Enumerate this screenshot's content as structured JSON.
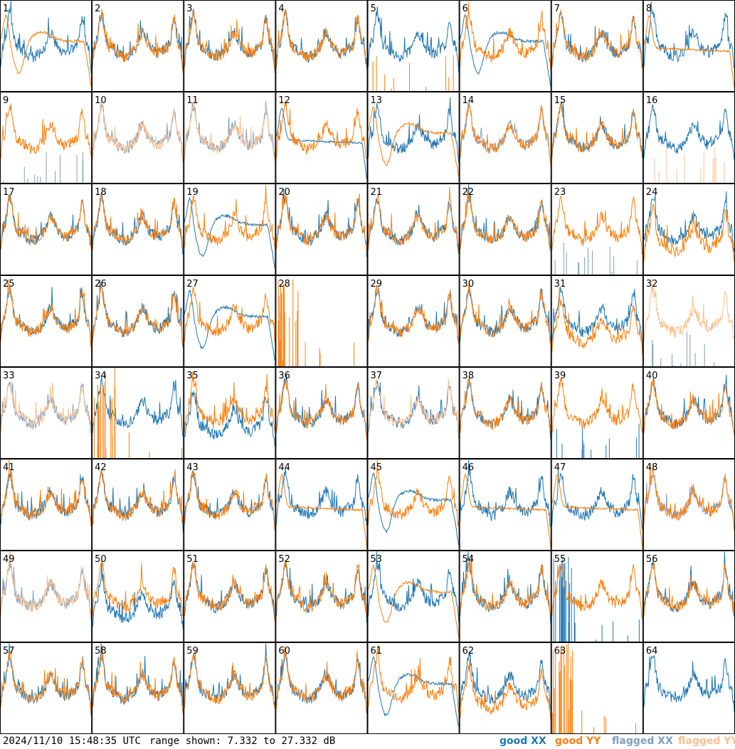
{
  "footer": {
    "timestamp": "2024/11/10 15:48:35 UTC",
    "range": "range shown: 7.332 to 27.332 dB"
  },
  "legend": [
    {
      "label": "good XX",
      "color": "#1f77b4"
    },
    {
      "label": "good YY",
      "color": "#ff7f0e"
    },
    {
      "label": "flagged XX",
      "color": "#7f9fbf"
    },
    {
      "label": "flagged YY",
      "color": "#ffbf8f"
    }
  ],
  "chart_data": {
    "type": "line",
    "grid": {
      "rows": 8,
      "cols": 8
    },
    "ylim": [
      7.332,
      27.332
    ],
    "yunit": "dB",
    "panels": [
      {
        "id": "1",
        "xx": "normal",
        "yy": "dip-low"
      },
      {
        "id": "2",
        "xx": "normal",
        "yy": "normal"
      },
      {
        "id": "3",
        "xx": "normal",
        "yy": "normal"
      },
      {
        "id": "4",
        "xx": "normal",
        "yy": "normal"
      },
      {
        "id": "5",
        "xx": "normal",
        "yy": "spikes-low"
      },
      {
        "id": "6",
        "xx": "dip-low",
        "yy": "normal"
      },
      {
        "id": "7",
        "xx": "normal",
        "yy": "normal"
      },
      {
        "id": "8",
        "xx": "normal",
        "yy": "flat"
      },
      {
        "id": "9",
        "xx": "flagged-spikes",
        "yy": "normal"
      },
      {
        "id": "10",
        "xx": "flagged",
        "yy": "flagged"
      },
      {
        "id": "11",
        "xx": "flagged",
        "yy": "flagged"
      },
      {
        "id": "12",
        "xx": "flat",
        "yy": "normal"
      },
      {
        "id": "13",
        "xx": "normal",
        "yy": "dip-low"
      },
      {
        "id": "14",
        "xx": "flagged",
        "yy": "normal"
      },
      {
        "id": "15",
        "xx": "normal",
        "yy": "normal"
      },
      {
        "id": "16",
        "xx": "normal",
        "yy": "flagged-spikes"
      },
      {
        "id": "17",
        "xx": "normal",
        "yy": "normal"
      },
      {
        "id": "18",
        "xx": "normal",
        "yy": "normal"
      },
      {
        "id": "19",
        "xx": "dip-low",
        "yy": "normal"
      },
      {
        "id": "20",
        "xx": "normal",
        "yy": "normal"
      },
      {
        "id": "21",
        "xx": "normal",
        "yy": "normal"
      },
      {
        "id": "22",
        "xx": "normal",
        "yy": "normal"
      },
      {
        "id": "23",
        "xx": "flagged-spikes",
        "yy": "normal"
      },
      {
        "id": "24",
        "xx": "normal",
        "yy": "low"
      },
      {
        "id": "25",
        "xx": "normal",
        "yy": "normal"
      },
      {
        "id": "26",
        "xx": "normal",
        "yy": "normal"
      },
      {
        "id": "27",
        "xx": "dip-low",
        "yy": "normal"
      },
      {
        "id": "28",
        "xx": "none",
        "yy": "spikes-tall"
      },
      {
        "id": "29",
        "xx": "normal",
        "yy": "normal"
      },
      {
        "id": "30",
        "xx": "normal",
        "yy": "normal"
      },
      {
        "id": "31",
        "xx": "normal",
        "yy": "low"
      },
      {
        "id": "32",
        "xx": "flagged-spikes",
        "yy": "flagged"
      },
      {
        "id": "33",
        "xx": "flagged",
        "yy": "flagged"
      },
      {
        "id": "34",
        "xx": "normal",
        "yy": "spikes-tall"
      },
      {
        "id": "35",
        "xx": "low",
        "yy": "normal"
      },
      {
        "id": "36",
        "xx": "normal",
        "yy": "normal"
      },
      {
        "id": "37",
        "xx": "normal",
        "yy": "flagged"
      },
      {
        "id": "38",
        "xx": "normal",
        "yy": "normal"
      },
      {
        "id": "39",
        "xx": "spikes-low",
        "yy": "normal"
      },
      {
        "id": "40",
        "xx": "normal",
        "yy": "normal"
      },
      {
        "id": "41",
        "xx": "normal",
        "yy": "normal"
      },
      {
        "id": "42",
        "xx": "normal",
        "yy": "normal"
      },
      {
        "id": "43",
        "xx": "normal",
        "yy": "normal"
      },
      {
        "id": "44",
        "xx": "normal",
        "yy": "flat"
      },
      {
        "id": "45",
        "xx": "dip-low",
        "yy": "normal"
      },
      {
        "id": "46",
        "xx": "normal",
        "yy": "flat"
      },
      {
        "id": "47",
        "xx": "normal",
        "yy": "flat"
      },
      {
        "id": "48",
        "xx": "flagged",
        "yy": "normal"
      },
      {
        "id": "49",
        "xx": "flagged",
        "yy": "flagged"
      },
      {
        "id": "50",
        "xx": "low",
        "yy": "normal"
      },
      {
        "id": "51",
        "xx": "normal",
        "yy": "normal"
      },
      {
        "id": "52",
        "xx": "normal",
        "yy": "normal"
      },
      {
        "id": "53",
        "xx": "normal",
        "yy": "dip-low"
      },
      {
        "id": "54",
        "xx": "normal",
        "yy": "normal"
      },
      {
        "id": "55",
        "xx": "spikes-tall",
        "yy": "normal"
      },
      {
        "id": "56",
        "xx": "normal",
        "yy": "normal"
      },
      {
        "id": "57",
        "xx": "normal",
        "yy": "normal"
      },
      {
        "id": "58",
        "xx": "normal",
        "yy": "normal"
      },
      {
        "id": "59",
        "xx": "normal",
        "yy": "normal"
      },
      {
        "id": "60",
        "xx": "normal",
        "yy": "normal"
      },
      {
        "id": "61",
        "xx": "dip-low",
        "yy": "normal"
      },
      {
        "id": "62",
        "xx": "normal",
        "yy": "low"
      },
      {
        "id": "63",
        "xx": "none",
        "yy": "spikes-tall"
      },
      {
        "id": "64",
        "xx": "normal",
        "yy": "none"
      }
    ]
  }
}
